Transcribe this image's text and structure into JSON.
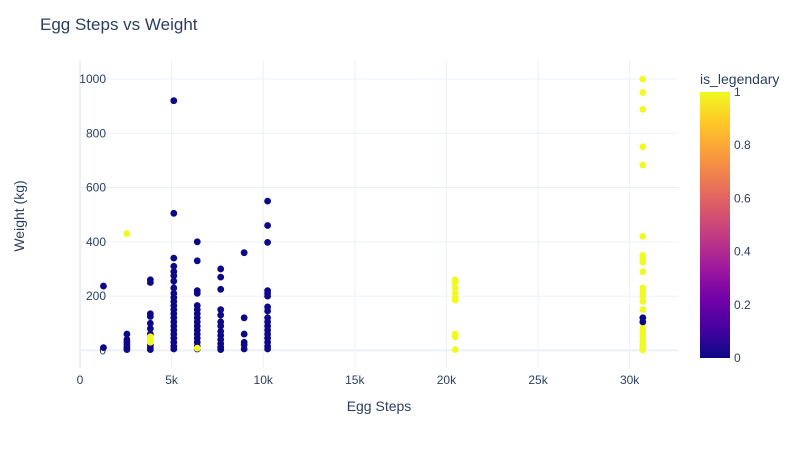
{
  "chart_data": {
    "type": "scatter",
    "title": "Egg Steps vs Weight",
    "xlabel": "Egg Steps",
    "ylabel": "Weight (kg)",
    "xlim": [
      0,
      32640
    ],
    "ylim": [
      -65,
      1070
    ],
    "x_ticks": [
      0,
      5000,
      10000,
      15000,
      20000,
      25000,
      30000
    ],
    "x_tick_labels": [
      "0",
      "5k",
      "10k",
      "15k",
      "20k",
      "25k",
      "30k"
    ],
    "y_ticks": [
      0,
      200,
      400,
      600,
      800,
      1000
    ],
    "y_tick_labels": [
      "0",
      "200",
      "400",
      "600",
      "800",
      "1000"
    ],
    "grid": true,
    "color_by": "is_legendary",
    "colorbar": {
      "title": "is_legendary",
      "range": [
        0,
        1
      ],
      "ticks": [
        "0",
        "0.2",
        "0.4",
        "0.6",
        "0.8",
        "1"
      ],
      "colors": [
        "#0d0887",
        "#46039f",
        "#7201a8",
        "#9c179e",
        "#bd3786",
        "#d8576b",
        "#ed7953",
        "#fb9f3a",
        "#fdca26",
        "#f0f921"
      ]
    },
    "points": [
      {
        "x": 1280,
        "y": 237,
        "c": 0
      },
      {
        "x": 1280,
        "y": 10,
        "c": 0
      },
      {
        "x": 2560,
        "y": 60,
        "c": 0
      },
      {
        "x": 2560,
        "y": 40,
        "c": 0
      },
      {
        "x": 2560,
        "y": 30,
        "c": 0
      },
      {
        "x": 2560,
        "y": 20,
        "c": 0
      },
      {
        "x": 2560,
        "y": 10,
        "c": 0
      },
      {
        "x": 2560,
        "y": 3,
        "c": 0
      },
      {
        "x": 2560,
        "y": 430,
        "c": 1
      },
      {
        "x": 3840,
        "y": 260,
        "c": 0
      },
      {
        "x": 3840,
        "y": 250,
        "c": 0
      },
      {
        "x": 3840,
        "y": 135,
        "c": 0
      },
      {
        "x": 3840,
        "y": 125,
        "c": 0
      },
      {
        "x": 3840,
        "y": 100,
        "c": 0
      },
      {
        "x": 3840,
        "y": 80,
        "c": 0
      },
      {
        "x": 3840,
        "y": 60,
        "c": 0
      },
      {
        "x": 3840,
        "y": 20,
        "c": 0
      },
      {
        "x": 3840,
        "y": 10,
        "c": 0
      },
      {
        "x": 3840,
        "y": 3,
        "c": 0
      },
      {
        "x": 3840,
        "y": 50,
        "c": 1
      },
      {
        "x": 3840,
        "y": 40,
        "c": 1
      },
      {
        "x": 3840,
        "y": 30,
        "c": 1
      },
      {
        "x": 5120,
        "y": 920,
        "c": 0
      },
      {
        "x": 5120,
        "y": 505,
        "c": 0
      },
      {
        "x": 5120,
        "y": 340,
        "c": 0
      },
      {
        "x": 5120,
        "y": 310,
        "c": 0
      },
      {
        "x": 5120,
        "y": 290,
        "c": 0
      },
      {
        "x": 5120,
        "y": 275,
        "c": 0
      },
      {
        "x": 5120,
        "y": 255,
        "c": 0
      },
      {
        "x": 5120,
        "y": 230,
        "c": 0
      },
      {
        "x": 5120,
        "y": 210,
        "c": 0
      },
      {
        "x": 5120,
        "y": 195,
        "c": 0
      },
      {
        "x": 5120,
        "y": 180,
        "c": 0
      },
      {
        "x": 5120,
        "y": 165,
        "c": 0
      },
      {
        "x": 5120,
        "y": 150,
        "c": 0
      },
      {
        "x": 5120,
        "y": 135,
        "c": 0
      },
      {
        "x": 5120,
        "y": 120,
        "c": 0
      },
      {
        "x": 5120,
        "y": 105,
        "c": 0
      },
      {
        "x": 5120,
        "y": 90,
        "c": 0
      },
      {
        "x": 5120,
        "y": 75,
        "c": 0
      },
      {
        "x": 5120,
        "y": 60,
        "c": 0
      },
      {
        "x": 5120,
        "y": 45,
        "c": 0
      },
      {
        "x": 5120,
        "y": 30,
        "c": 0
      },
      {
        "x": 5120,
        "y": 15,
        "c": 0
      },
      {
        "x": 5120,
        "y": 5,
        "c": 0
      },
      {
        "x": 6400,
        "y": 400,
        "c": 0
      },
      {
        "x": 6400,
        "y": 330,
        "c": 0
      },
      {
        "x": 6400,
        "y": 220,
        "c": 0
      },
      {
        "x": 6400,
        "y": 210,
        "c": 0
      },
      {
        "x": 6400,
        "y": 165,
        "c": 0
      },
      {
        "x": 6400,
        "y": 150,
        "c": 0
      },
      {
        "x": 6400,
        "y": 135,
        "c": 0
      },
      {
        "x": 6400,
        "y": 120,
        "c": 0
      },
      {
        "x": 6400,
        "y": 105,
        "c": 0
      },
      {
        "x": 6400,
        "y": 90,
        "c": 0
      },
      {
        "x": 6400,
        "y": 75,
        "c": 0
      },
      {
        "x": 6400,
        "y": 60,
        "c": 0
      },
      {
        "x": 6400,
        "y": 45,
        "c": 0
      },
      {
        "x": 6400,
        "y": 30,
        "c": 0
      },
      {
        "x": 6400,
        "y": 15,
        "c": 0
      },
      {
        "x": 6400,
        "y": 5,
        "c": 0
      },
      {
        "x": 6400,
        "y": 8,
        "c": 1
      },
      {
        "x": 7680,
        "y": 300,
        "c": 0
      },
      {
        "x": 7680,
        "y": 270,
        "c": 0
      },
      {
        "x": 7680,
        "y": 225,
        "c": 0
      },
      {
        "x": 7680,
        "y": 150,
        "c": 0
      },
      {
        "x": 7680,
        "y": 130,
        "c": 0
      },
      {
        "x": 7680,
        "y": 105,
        "c": 0
      },
      {
        "x": 7680,
        "y": 90,
        "c": 0
      },
      {
        "x": 7680,
        "y": 70,
        "c": 0
      },
      {
        "x": 7680,
        "y": 55,
        "c": 0
      },
      {
        "x": 7680,
        "y": 40,
        "c": 0
      },
      {
        "x": 7680,
        "y": 25,
        "c": 0
      },
      {
        "x": 7680,
        "y": 12,
        "c": 0
      },
      {
        "x": 7680,
        "y": 3,
        "c": 0
      },
      {
        "x": 8960,
        "y": 360,
        "c": 0
      },
      {
        "x": 8960,
        "y": 120,
        "c": 0
      },
      {
        "x": 8960,
        "y": 60,
        "c": 0
      },
      {
        "x": 8960,
        "y": 30,
        "c": 0
      },
      {
        "x": 8960,
        "y": 20,
        "c": 0
      },
      {
        "x": 8960,
        "y": 5,
        "c": 0
      },
      {
        "x": 10240,
        "y": 550,
        "c": 0
      },
      {
        "x": 10240,
        "y": 460,
        "c": 0
      },
      {
        "x": 10240,
        "y": 398,
        "c": 0
      },
      {
        "x": 10240,
        "y": 220,
        "c": 0
      },
      {
        "x": 10240,
        "y": 210,
        "c": 0
      },
      {
        "x": 10240,
        "y": 200,
        "c": 0
      },
      {
        "x": 10240,
        "y": 160,
        "c": 0
      },
      {
        "x": 10240,
        "y": 145,
        "c": 0
      },
      {
        "x": 10240,
        "y": 120,
        "c": 0
      },
      {
        "x": 10240,
        "y": 105,
        "c": 0
      },
      {
        "x": 10240,
        "y": 90,
        "c": 0
      },
      {
        "x": 10240,
        "y": 75,
        "c": 0
      },
      {
        "x": 10240,
        "y": 60,
        "c": 0
      },
      {
        "x": 10240,
        "y": 45,
        "c": 0
      },
      {
        "x": 10240,
        "y": 30,
        "c": 0
      },
      {
        "x": 10240,
        "y": 15,
        "c": 0
      },
      {
        "x": 10240,
        "y": 5,
        "c": 0
      },
      {
        "x": 20480,
        "y": 260,
        "c": 1
      },
      {
        "x": 20480,
        "y": 250,
        "c": 1
      },
      {
        "x": 20480,
        "y": 230,
        "c": 1
      },
      {
        "x": 20480,
        "y": 210,
        "c": 1
      },
      {
        "x": 20480,
        "y": 195,
        "c": 1
      },
      {
        "x": 20480,
        "y": 185,
        "c": 1
      },
      {
        "x": 20480,
        "y": 60,
        "c": 1
      },
      {
        "x": 20480,
        "y": 50,
        "c": 1
      },
      {
        "x": 20480,
        "y": 3,
        "c": 1
      },
      {
        "x": 30720,
        "y": 999,
        "c": 1
      },
      {
        "x": 30720,
        "y": 950,
        "c": 1
      },
      {
        "x": 30720,
        "y": 888,
        "c": 1
      },
      {
        "x": 30720,
        "y": 750,
        "c": 1
      },
      {
        "x": 30720,
        "y": 683,
        "c": 1
      },
      {
        "x": 30720,
        "y": 420,
        "c": 1
      },
      {
        "x": 30720,
        "y": 350,
        "c": 1
      },
      {
        "x": 30720,
        "y": 340,
        "c": 1
      },
      {
        "x": 30720,
        "y": 325,
        "c": 1
      },
      {
        "x": 30720,
        "y": 290,
        "c": 1
      },
      {
        "x": 30720,
        "y": 230,
        "c": 1
      },
      {
        "x": 30720,
        "y": 215,
        "c": 1
      },
      {
        "x": 30720,
        "y": 200,
        "c": 1
      },
      {
        "x": 30720,
        "y": 180,
        "c": 1
      },
      {
        "x": 30720,
        "y": 150,
        "c": 1
      },
      {
        "x": 30720,
        "y": 100,
        "c": 1
      },
      {
        "x": 30720,
        "y": 80,
        "c": 1
      },
      {
        "x": 30720,
        "y": 65,
        "c": 1
      },
      {
        "x": 30720,
        "y": 50,
        "c": 1
      },
      {
        "x": 30720,
        "y": 35,
        "c": 1
      },
      {
        "x": 30720,
        "y": 20,
        "c": 1
      },
      {
        "x": 30720,
        "y": 8,
        "c": 1
      },
      {
        "x": 30720,
        "y": 2,
        "c": 1
      },
      {
        "x": 30720,
        "y": 120,
        "c": 0
      },
      {
        "x": 30720,
        "y": 105,
        "c": 0
      }
    ]
  }
}
